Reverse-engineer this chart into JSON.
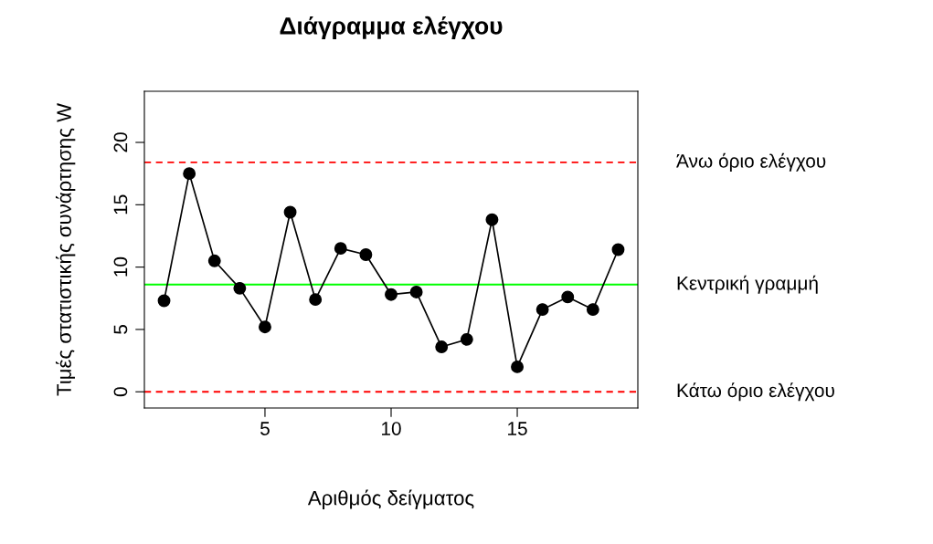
{
  "chart_data": {
    "type": "line",
    "title": "Διάγραμμα ελέγχου",
    "xlabel": "Αριθμός δείγματος",
    "ylabel": "Τιμές στατιστικής συνάρτησης W",
    "x": [
      1,
      2,
      3,
      4,
      5,
      6,
      7,
      8,
      9,
      10,
      11,
      12,
      13,
      14,
      15,
      16,
      17,
      18,
      19
    ],
    "series": [
      {
        "color": "#000000",
        "values": [
          7.3,
          17.5,
          10.5,
          8.3,
          5.2,
          14.4,
          7.4,
          11.5,
          11.0,
          7.8,
          8.0,
          3.6,
          4.2,
          13.8,
          2.0,
          6.6,
          7.6,
          6.6,
          11.4
        ]
      }
    ],
    "marker": "circle",
    "line_style": "solid",
    "grid": false,
    "legend": false,
    "xlim": [
      0.22,
      19.78
    ],
    "ylim": [
      -1.3,
      24.1
    ],
    "xticks": [
      5,
      10,
      15
    ],
    "yticks": [
      0,
      5,
      10,
      15,
      20
    ],
    "ref_lines": [
      {
        "axis": "y",
        "value": 18.4,
        "label": "Άνω όριο ελέγχου",
        "color": "#ff0000",
        "line_style": "dashed"
      },
      {
        "axis": "y",
        "value": 8.6,
        "label": "Κεντρική γραμμή",
        "color": "#00ff00",
        "line_style": "solid"
      },
      {
        "axis": "y",
        "value": 0,
        "label": "Κάτω όριο ελέγχου",
        "color": "#ff0000",
        "line_style": "dashed"
      }
    ]
  }
}
